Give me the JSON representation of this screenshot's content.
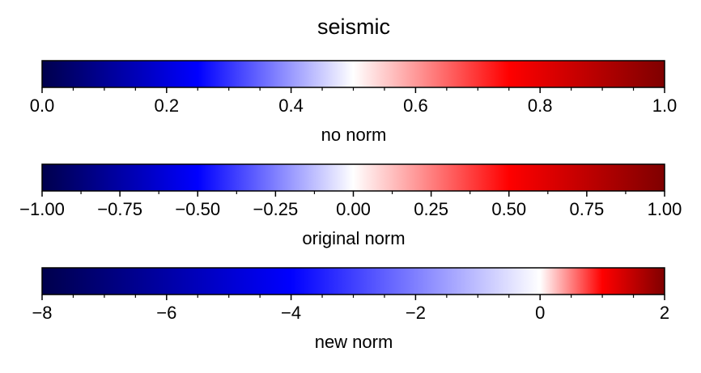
{
  "title": "seismic",
  "colormap": {
    "name": "seismic",
    "stops": [
      "#00004c",
      "#0000ff",
      "#ffffff",
      "#ff0000",
      "#7f0000"
    ],
    "stop_positions": [
      0,
      0.25,
      0.5,
      0.75,
      1
    ]
  },
  "chart_data": [
    {
      "type": "colorbar",
      "xlabel": "no norm",
      "xlim": [
        0.0,
        1.0
      ],
      "center": 0.5,
      "major_ticks": [
        0.0,
        0.2,
        0.4,
        0.6,
        0.8,
        1.0
      ],
      "tick_labels": [
        "0.0",
        "0.2",
        "0.4",
        "0.6",
        "0.8",
        "1.0"
      ],
      "minor_ticks": [
        0.05,
        0.1,
        0.15,
        0.25,
        0.3,
        0.35,
        0.45,
        0.5,
        0.55,
        0.65,
        0.7,
        0.75,
        0.85,
        0.9,
        0.95
      ]
    },
    {
      "type": "colorbar",
      "xlabel": "original norm",
      "xlim": [
        -1.0,
        1.0
      ],
      "center": 0.0,
      "major_ticks": [
        -1.0,
        -0.75,
        -0.5,
        -0.25,
        0.0,
        0.25,
        0.5,
        0.75,
        1.0
      ],
      "tick_labels": [
        "−1.00",
        "−0.75",
        "−0.50",
        "−0.25",
        "0.00",
        "0.25",
        "0.50",
        "0.75",
        "1.00"
      ],
      "minor_ticks": [
        -0.875,
        -0.625,
        -0.375,
        -0.125,
        0.125,
        0.375,
        0.625,
        0.875
      ]
    },
    {
      "type": "colorbar",
      "xlabel": "new norm",
      "xlim": [
        -8,
        2
      ],
      "center": 0,
      "major_ticks": [
        -8,
        -6,
        -4,
        -2,
        0,
        2
      ],
      "tick_labels": [
        "−8",
        "−6",
        "−4",
        "−2",
        "0",
        "2"
      ],
      "minor_ticks": [
        -7.5,
        -7,
        -6.5,
        -5.5,
        -5,
        -4.5,
        -3.5,
        -3,
        -2.5,
        -1.5,
        -1,
        -0.5,
        0.5,
        1,
        1.5
      ]
    }
  ]
}
